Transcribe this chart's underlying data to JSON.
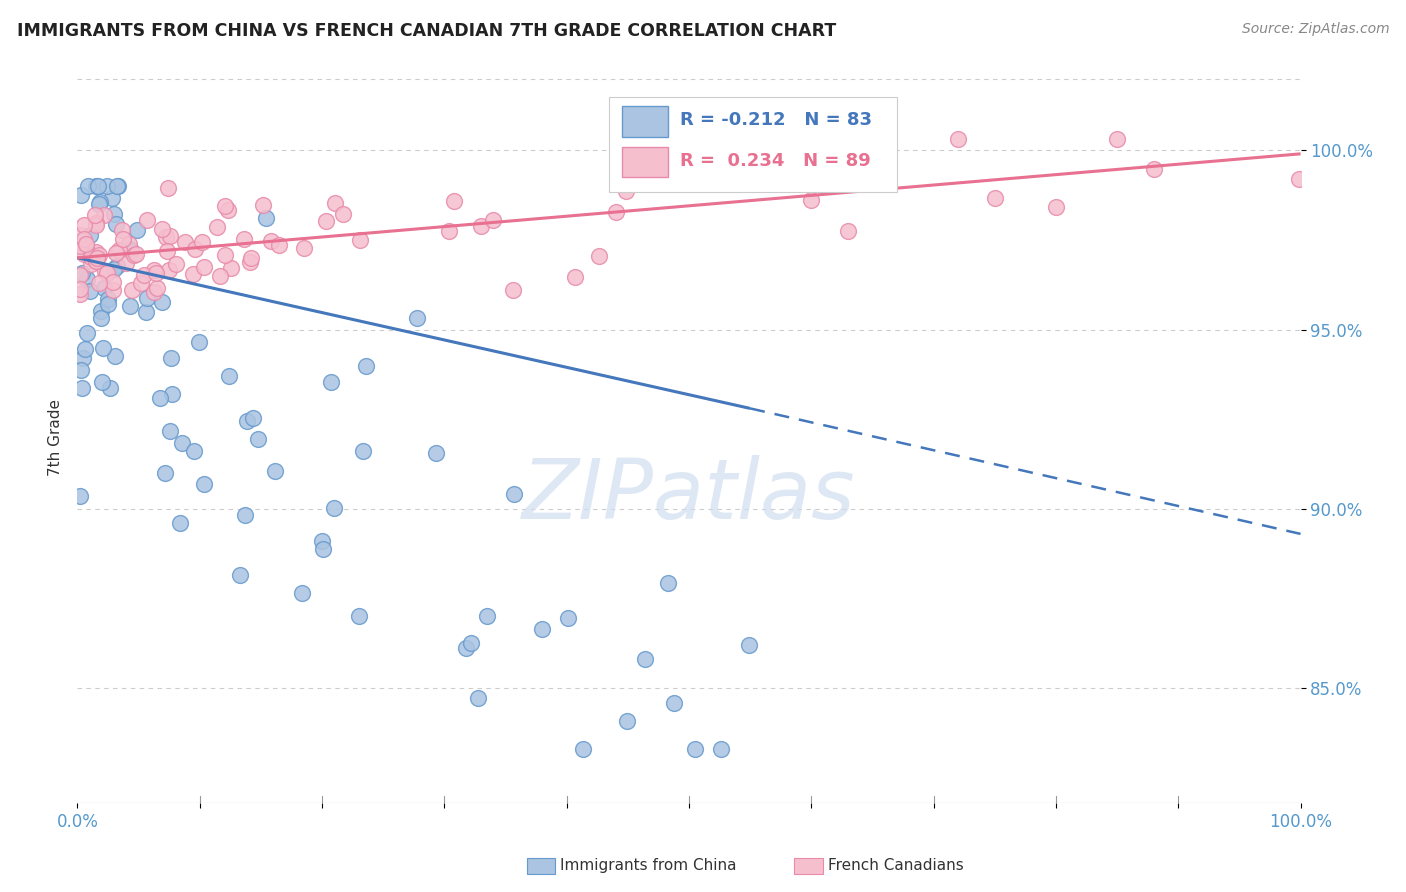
{
  "title": "IMMIGRANTS FROM CHINA VS FRENCH CANADIAN 7TH GRADE CORRELATION CHART",
  "source": "Source: ZipAtlas.com",
  "ylabel": "7th Grade",
  "y_tick_labels": [
    "85.0%",
    "90.0%",
    "95.0%",
    "100.0%"
  ],
  "y_tick_values": [
    0.85,
    0.9,
    0.95,
    1.0
  ],
  "x_range": [
    0.0,
    1.0
  ],
  "y_range": [
    0.818,
    1.022
  ],
  "legend_china_R": "-0.212",
  "legend_china_N": "83",
  "legend_fc_R": "0.234",
  "legend_fc_N": "89",
  "china_color": "#aac4e2",
  "china_edge_color": "#6699cc",
  "fc_color": "#f5bfce",
  "fc_edge_color": "#e88aaa",
  "trend_china_color": "#4477bb",
  "trend_fc_color": "#e87090",
  "watermark_color": "#d0dff0",
  "background_color": "#ffffff",
  "legend_text_china_color": "#4477bb",
  "legend_text_fc_color": "#e87090",
  "tick_color": "#5599cc",
  "ylabel_color": "#333333",
  "title_color": "#222222",
  "source_color": "#888888",
  "china_trend_x0": 0.0,
  "china_trend_y0": 0.97,
  "china_trend_x1": 0.55,
  "china_trend_y1": 0.928,
  "china_trend_dash_x0": 0.55,
  "china_trend_dash_y0": 0.928,
  "china_trend_dash_x1": 1.0,
  "china_trend_dash_y1": 0.893,
  "fc_trend_x0": 0.0,
  "fc_trend_y0": 0.97,
  "fc_trend_x1": 1.0,
  "fc_trend_y1": 0.999
}
